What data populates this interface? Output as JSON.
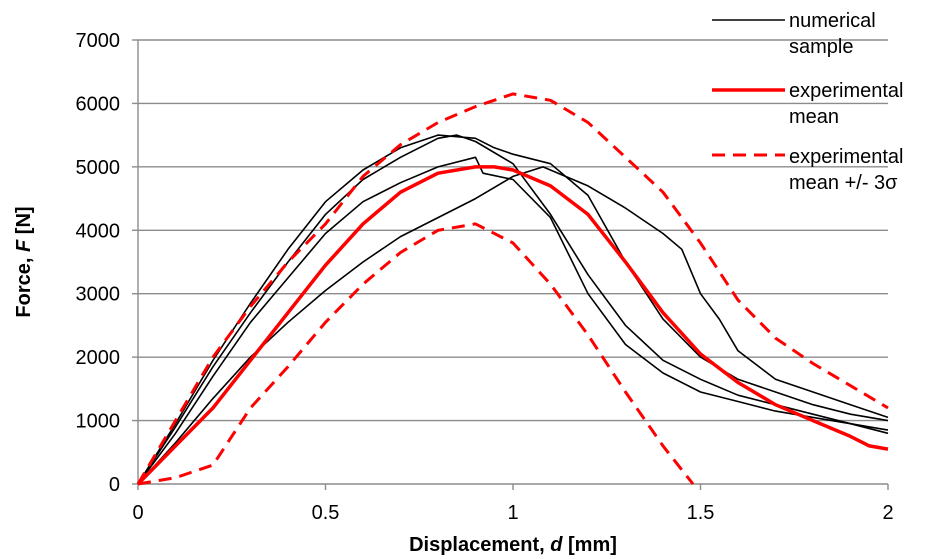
{
  "chart_data": {
    "type": "line",
    "xlabel": {
      "prefix": "Displacement, ",
      "var": "d",
      "suffix": " [mm]"
    },
    "ylabel": {
      "prefix": "Force, ",
      "var": "F",
      "suffix": " [N]"
    },
    "xlim": [
      0,
      2
    ],
    "ylim": [
      0,
      7000
    ],
    "xticks": [
      0,
      0.5,
      1,
      1.5,
      2
    ],
    "xtick_labels": [
      "0",
      "0.5",
      "1",
      "1.5",
      "2"
    ],
    "yticks": [
      0,
      1000,
      2000,
      3000,
      4000,
      5000,
      6000,
      7000
    ],
    "ytick_labels": [
      "0",
      "1000",
      "2000",
      "3000",
      "4000",
      "5000",
      "6000",
      "7000"
    ],
    "grid": "horizontal",
    "legend_position": "right",
    "legend": [
      {
        "lines": [
          "numerical",
          "sample"
        ],
        "style": "solid",
        "color": "#000000"
      },
      {
        "lines": [
          "experimental",
          "mean"
        ],
        "style": "solid-thick",
        "color": "#ff0000"
      },
      {
        "lines": [
          "experimental",
          "mean +/- 3σ"
        ],
        "style": "dashed",
        "color": "#ff0000"
      }
    ],
    "series": [
      {
        "name": "numerical sample",
        "group": "numerical",
        "color": "#000000",
        "style": "solid",
        "x": [
          0,
          0.1,
          0.2,
          0.3,
          0.4,
          0.5,
          0.6,
          0.7,
          0.8,
          0.85,
          0.9,
          1.0,
          1.1,
          1.2,
          1.3,
          1.4,
          1.5,
          1.6,
          1.7,
          1.8,
          1.9,
          2.0
        ],
        "y": [
          0,
          900,
          1850,
          2700,
          3500,
          4250,
          4800,
          5150,
          5450,
          5500,
          5400,
          5050,
          4250,
          3300,
          2500,
          1950,
          1650,
          1400,
          1250,
          1100,
          950,
          800
        ]
      },
      {
        "name": "numerical sample",
        "group": "numerical",
        "color": "#000000",
        "style": "solid",
        "x": [
          0,
          0.1,
          0.2,
          0.3,
          0.4,
          0.5,
          0.6,
          0.7,
          0.8,
          0.9,
          0.95,
          1.0,
          1.1,
          1.2,
          1.3,
          1.4,
          1.5,
          1.6,
          1.7,
          1.8,
          1.9,
          2.0
        ],
        "y": [
          0,
          950,
          1950,
          2850,
          3700,
          4450,
          4950,
          5300,
          5500,
          5450,
          5300,
          5200,
          5050,
          4550,
          3500,
          2600,
          2000,
          1650,
          1450,
          1250,
          1100,
          1000
        ]
      },
      {
        "name": "numerical sample",
        "group": "numerical",
        "color": "#000000",
        "style": "solid",
        "x": [
          0,
          0.1,
          0.2,
          0.3,
          0.4,
          0.5,
          0.6,
          0.7,
          0.8,
          0.9,
          0.92,
          1.0,
          1.1,
          1.2,
          1.3,
          1.4,
          1.5,
          1.6,
          1.7,
          1.8,
          1.9,
          2.0
        ],
        "y": [
          0,
          800,
          1700,
          2550,
          3250,
          3950,
          4450,
          4750,
          5000,
          5150,
          4900,
          4800,
          4200,
          3000,
          2200,
          1750,
          1450,
          1300,
          1150,
          1050,
          950,
          850
        ]
      },
      {
        "name": "numerical sample",
        "group": "numerical",
        "color": "#000000",
        "style": "solid",
        "x": [
          0,
          0.1,
          0.2,
          0.3,
          0.4,
          0.5,
          0.6,
          0.7,
          0.8,
          0.9,
          1.0,
          1.08,
          1.2,
          1.3,
          1.4,
          1.45,
          1.5,
          1.55,
          1.6,
          1.7,
          1.8,
          1.9,
          2.0
        ],
        "y": [
          0,
          650,
          1350,
          2000,
          2550,
          3050,
          3500,
          3900,
          4200,
          4500,
          4850,
          5000,
          4700,
          4350,
          3950,
          3700,
          3000,
          2600,
          2100,
          1650,
          1450,
          1250,
          1050
        ]
      },
      {
        "name": "experimental mean",
        "group": "mean",
        "color": "#ff0000",
        "style": "solid-thick",
        "x": [
          0,
          0.1,
          0.2,
          0.3,
          0.4,
          0.5,
          0.6,
          0.7,
          0.8,
          0.9,
          0.95,
          1.0,
          1.1,
          1.2,
          1.3,
          1.4,
          1.5,
          1.6,
          1.7,
          1.8,
          1.9,
          1.95,
          2.0
        ],
        "y": [
          0,
          600,
          1200,
          1950,
          2700,
          3450,
          4100,
          4600,
          4900,
          5000,
          5000,
          4950,
          4700,
          4250,
          3500,
          2700,
          2050,
          1600,
          1250,
          1000,
          750,
          600,
          550
        ]
      },
      {
        "name": "experimental mean +/- 3σ",
        "group": "upper",
        "color": "#ff0000",
        "style": "dashed",
        "x": [
          0,
          0.1,
          0.2,
          0.3,
          0.4,
          0.5,
          0.6,
          0.7,
          0.8,
          0.9,
          1.0,
          1.1,
          1.2,
          1.3,
          1.4,
          1.5,
          1.6,
          1.7,
          1.8,
          1.9,
          2.0
        ],
        "y": [
          0,
          1000,
          2000,
          2800,
          3500,
          4100,
          4850,
          5350,
          5700,
          5950,
          6150,
          6050,
          5700,
          5150,
          4600,
          3800,
          2900,
          2300,
          1900,
          1550,
          1200
        ]
      },
      {
        "name": "experimental mean +/- 3σ",
        "group": "lower",
        "color": "#ff0000",
        "style": "dashed",
        "x": [
          0,
          0.1,
          0.2,
          0.3,
          0.4,
          0.5,
          0.6,
          0.7,
          0.8,
          0.9,
          1.0,
          1.1,
          1.2,
          1.3,
          1.4,
          1.48
        ],
        "y": [
          0,
          100,
          300,
          1200,
          1850,
          2550,
          3150,
          3650,
          4000,
          4100,
          3800,
          3150,
          2350,
          1450,
          600,
          0
        ]
      }
    ]
  }
}
